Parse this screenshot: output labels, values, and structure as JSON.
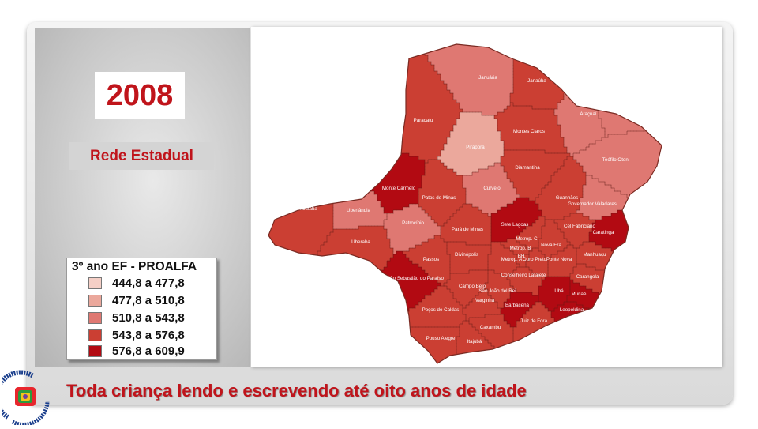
{
  "year": "2008",
  "network": "Rede Estadual",
  "legend": {
    "title": "3º ano EF - PROALFA",
    "items": [
      {
        "label": "444,8 a 477,8",
        "color": "#f5cfc6"
      },
      {
        "label": "477,8 a 510,8",
        "color": "#eba89c"
      },
      {
        "label": "510,8 a 543,8",
        "color": "#df7872"
      },
      {
        "label": "543,8 a 576,8",
        "color": "#cb3f33"
      },
      {
        "label": "576,8 a 609,9",
        "color": "#b20a12"
      }
    ]
  },
  "regions": [
    {
      "name": "Januária",
      "class": 3
    },
    {
      "name": "Janaúba",
      "class": 4
    },
    {
      "name": "Almenara",
      "class": 3
    },
    {
      "name": "Araçuaí",
      "class": 3
    },
    {
      "name": "Paracatu",
      "class": 4
    },
    {
      "name": "Montes Claros",
      "class": 4
    },
    {
      "name": "Pirapora",
      "class": 2
    },
    {
      "name": "Teófilo Otoni",
      "class": 3
    },
    {
      "name": "Diamantina",
      "class": 4
    },
    {
      "name": "Curvelo",
      "class": 3
    },
    {
      "name": "Monte Carmelo",
      "class": 5
    },
    {
      "name": "Patos de Minas",
      "class": 4
    },
    {
      "name": "Guanhães",
      "class": 4
    },
    {
      "name": "Governador Valadares",
      "class": 3
    },
    {
      "name": "Ituiutaba",
      "class": 4
    },
    {
      "name": "Uberlândia",
      "class": 3
    },
    {
      "name": "Patrocínio",
      "class": 3
    },
    {
      "name": "Sete Lagoas",
      "class": 5
    },
    {
      "name": "Pará de Minas",
      "class": 4
    },
    {
      "name": "Cel Fabriciano",
      "class": 4
    },
    {
      "name": "Caratinga",
      "class": 5
    },
    {
      "name": "Metrop. C",
      "class": 4
    },
    {
      "name": "Metrop. B",
      "class": 4
    },
    {
      "name": "BH",
      "class": 4
    },
    {
      "name": "Nova Era",
      "class": 4
    },
    {
      "name": "Uberaba",
      "class": 4
    },
    {
      "name": "Passos",
      "class": 4
    },
    {
      "name": "Divinópolis",
      "class": 4
    },
    {
      "name": "Metrop. A",
      "class": 4
    },
    {
      "name": "Ouro Preto",
      "class": 4
    },
    {
      "name": "Ponte Nova",
      "class": 4
    },
    {
      "name": "Manhuaçu",
      "class": 4
    },
    {
      "name": "São Sebastião do Paraíso",
      "class": 5
    },
    {
      "name": "Campo Belo",
      "class": 4
    },
    {
      "name": "Conselheiro Lafaiete",
      "class": 4
    },
    {
      "name": "Carangola",
      "class": 4
    },
    {
      "name": "Varginha",
      "class": 4
    },
    {
      "name": "São João del Rei",
      "class": 4
    },
    {
      "name": "Ubá",
      "class": 5
    },
    {
      "name": "Muriaé",
      "class": 5
    },
    {
      "name": "Poços de Caldas",
      "class": 4
    },
    {
      "name": "Barbacena",
      "class": 5
    },
    {
      "name": "Leopoldina",
      "class": 5
    },
    {
      "name": "Caxambu",
      "class": 4
    },
    {
      "name": "Juiz de Fora",
      "class": 4
    },
    {
      "name": "Pouso Alegre",
      "class": 4
    },
    {
      "name": "Itajubá",
      "class": 4
    }
  ],
  "logo_text": "Plano Decenal de Educação de Minas Gerais",
  "slogan": "Toda criança lendo e escrevendo até oito anos de idade"
}
